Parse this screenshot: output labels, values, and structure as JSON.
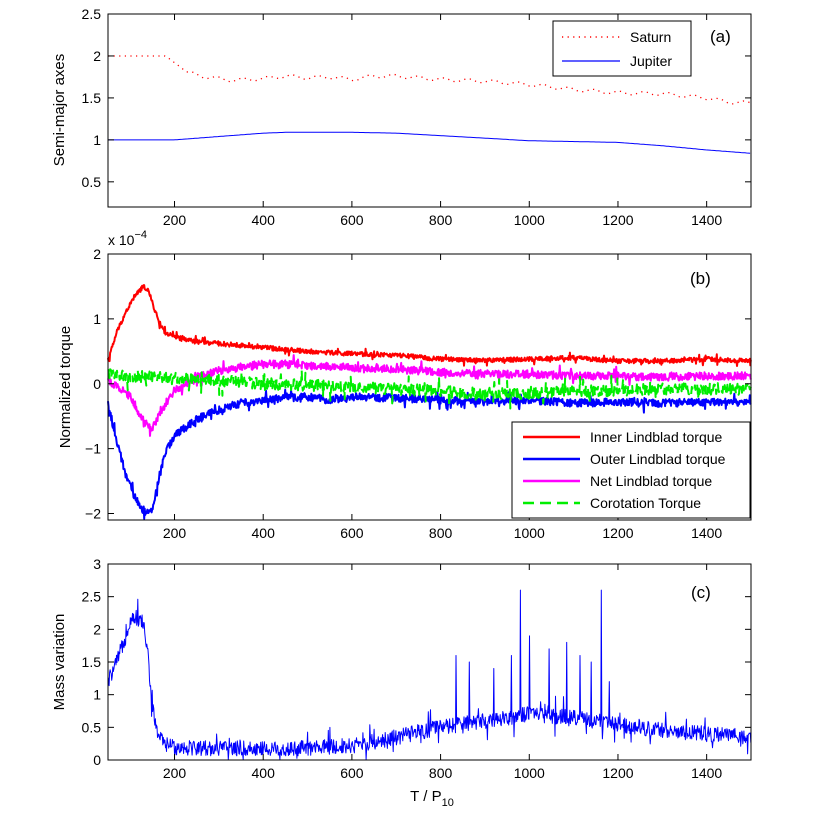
{
  "chart_data": [
    {
      "panel_label": "(a)",
      "type": "line",
      "title": "",
      "xlabel": "",
      "ylabel": "Semi-major axes",
      "xlim": [
        50,
        1500
      ],
      "ylim": [
        0.2,
        2.5
      ],
      "xticks": [
        200,
        400,
        600,
        800,
        1000,
        1200,
        1400
      ],
      "xtick_labels": [
        "200",
        "400",
        "600",
        "800",
        "1000",
        "1200",
        "1400"
      ],
      "yticks": [
        0.5,
        1,
        1.5,
        2,
        2.5
      ],
      "ytick_labels": [
        "0.5",
        "1",
        "1.5",
        "2",
        "2.5"
      ],
      "legend_position": "top-right",
      "series": [
        {
          "name": "Saturn",
          "color": "#ff0000",
          "style": "dotted",
          "x": [
            50,
            180,
            200,
            230,
            270,
            330,
            400,
            450,
            500,
            550,
            600,
            650,
            700,
            800,
            900,
            1000,
            1100,
            1200,
            1300,
            1400,
            1450,
            1500
          ],
          "y": [
            2.0,
            2.0,
            1.92,
            1.8,
            1.75,
            1.71,
            1.73,
            1.76,
            1.74,
            1.75,
            1.72,
            1.76,
            1.76,
            1.72,
            1.7,
            1.66,
            1.6,
            1.56,
            1.55,
            1.5,
            1.45,
            1.44
          ]
        },
        {
          "name": "Jupiter",
          "color": "#0000ff",
          "style": "solid",
          "x": [
            50,
            200,
            300,
            400,
            450,
            500,
            600,
            700,
            800,
            900,
            1000,
            1100,
            1200,
            1300,
            1400,
            1500
          ],
          "y": [
            1.0,
            1.0,
            1.04,
            1.08,
            1.09,
            1.09,
            1.09,
            1.08,
            1.05,
            1.02,
            0.99,
            0.98,
            0.97,
            0.93,
            0.88,
            0.84
          ]
        }
      ]
    },
    {
      "panel_label": "(b)",
      "type": "line",
      "title": "",
      "xlabel": "",
      "ylabel": "Normalized torque",
      "scale_note": "x 10",
      "scale_exponent": "−4",
      "xlim": [
        50,
        1500
      ],
      "ylim": [
        -2.1,
        2.0
      ],
      "xticks": [
        200,
        400,
        600,
        800,
        1000,
        1200,
        1400
      ],
      "xtick_labels": [
        "200",
        "400",
        "600",
        "800",
        "1000",
        "1200",
        "1400"
      ],
      "yticks": [
        -2,
        -1,
        0,
        1,
        2
      ],
      "ytick_labels": [
        "−2",
        "−1",
        "0",
        "1",
        "2"
      ],
      "legend_position": "bottom-right",
      "series": [
        {
          "name": "Inner Lindblad torque",
          "color": "#ff0000",
          "style": "solid",
          "x": [
            50,
            70,
            90,
            110,
            130,
            140,
            150,
            165,
            180,
            200,
            250,
            300,
            400,
            500,
            600,
            700,
            800,
            900,
            1000,
            1100,
            1200,
            1300,
            1400,
            1500
          ],
          "y": [
            0.35,
            0.8,
            1.1,
            1.35,
            1.5,
            1.45,
            1.25,
            0.95,
            0.78,
            0.72,
            0.65,
            0.62,
            0.56,
            0.5,
            0.46,
            0.44,
            0.38,
            0.36,
            0.38,
            0.4,
            0.35,
            0.35,
            0.38,
            0.35
          ],
          "noise": 0.035
        },
        {
          "name": "Outer Lindblad torque",
          "color": "#0000ff",
          "style": "solid",
          "x": [
            50,
            70,
            90,
            110,
            130,
            140,
            150,
            165,
            180,
            200,
            250,
            300,
            350,
            400,
            450,
            500,
            550,
            600,
            700,
            800,
            900,
            1000,
            1100,
            1200,
            1300,
            1400,
            1500
          ],
          "y": [
            -0.3,
            -0.9,
            -1.4,
            -1.75,
            -1.95,
            -2.0,
            -1.95,
            -1.45,
            -1.05,
            -0.8,
            -0.55,
            -0.4,
            -0.3,
            -0.25,
            -0.22,
            -0.2,
            -0.25,
            -0.2,
            -0.22,
            -0.25,
            -0.28,
            -0.25,
            -0.3,
            -0.28,
            -0.3,
            -0.28,
            -0.28
          ],
          "noise": 0.06
        },
        {
          "name": "Net Lindblad torque",
          "color": "#ff00ff",
          "style": "solid",
          "x": [
            50,
            80,
            100,
            120,
            140,
            150,
            165,
            180,
            200,
            250,
            300,
            400,
            450,
            500,
            600,
            700,
            800,
            900,
            1000,
            1100,
            1200,
            1300,
            1400,
            1500
          ],
          "y": [
            0.05,
            -0.08,
            -0.2,
            -0.45,
            -0.65,
            -0.68,
            -0.5,
            -0.3,
            -0.1,
            0.1,
            0.2,
            0.3,
            0.3,
            0.28,
            0.25,
            0.22,
            0.18,
            0.15,
            0.15,
            0.12,
            0.12,
            0.1,
            0.12,
            0.12
          ],
          "noise": 0.06
        },
        {
          "name": "Corotation Torque",
          "color": "#00ee00",
          "style": "dashed",
          "x": [
            50,
            100,
            150,
            200,
            300,
            400,
            500,
            600,
            700,
            800,
            900,
            1000,
            1100,
            1200,
            1300,
            1400,
            1500
          ],
          "y": [
            0.15,
            0.12,
            0.1,
            0.08,
            0.05,
            0.0,
            -0.02,
            -0.05,
            -0.08,
            -0.12,
            -0.15,
            -0.15,
            -0.12,
            -0.1,
            -0.08,
            -0.08,
            -0.08
          ],
          "noise": 0.09
        }
      ]
    },
    {
      "panel_label": "(c)",
      "type": "line",
      "title": "",
      "xlabel": "T / P",
      "xlabel_subscript": "10",
      "ylabel": "Mass variation",
      "xlim": [
        50,
        1500
      ],
      "ylim": [
        0,
        3
      ],
      "xticks": [
        200,
        400,
        600,
        800,
        1000,
        1200,
        1400
      ],
      "xtick_labels": [
        "200",
        "400",
        "600",
        "800",
        "1000",
        "1200",
        "1400"
      ],
      "yticks": [
        0,
        0.5,
        1,
        1.5,
        2,
        2.5,
        3
      ],
      "ytick_labels": [
        "0",
        "0.5",
        "1",
        "1.5",
        "2",
        "2.5",
        "3"
      ],
      "series": [
        {
          "name": "Mass variation",
          "color": "#0000ff",
          "style": "solid",
          "x": [
            50,
            70,
            90,
            100,
            110,
            120,
            130,
            140,
            150,
            160,
            175,
            200,
            300,
            400,
            450,
            500,
            600,
            650,
            700,
            800,
            900,
            1000,
            1100,
            1200,
            1300,
            1400,
            1500
          ],
          "y": [
            1.2,
            1.5,
            1.9,
            2.15,
            2.2,
            2.15,
            2.1,
            1.6,
            0.8,
            0.45,
            0.25,
            0.2,
            0.18,
            0.17,
            0.16,
            0.18,
            0.22,
            0.28,
            0.35,
            0.5,
            0.6,
            0.7,
            0.65,
            0.55,
            0.45,
            0.4,
            0.35
          ],
          "noise": 0.12,
          "spikes": [
            {
              "x": 835,
              "y": 1.6
            },
            {
              "x": 865,
              "y": 1.5
            },
            {
              "x": 920,
              "y": 1.4
            },
            {
              "x": 960,
              "y": 1.6
            },
            {
              "x": 980,
              "y": 2.6
            },
            {
              "x": 1000,
              "y": 1.9
            },
            {
              "x": 1045,
              "y": 1.7
            },
            {
              "x": 1085,
              "y": 1.8
            },
            {
              "x": 1115,
              "y": 1.6
            },
            {
              "x": 1140,
              "y": 1.5
            },
            {
              "x": 1162,
              "y": 2.6
            },
            {
              "x": 1180,
              "y": 1.2
            }
          ]
        }
      ]
    }
  ]
}
